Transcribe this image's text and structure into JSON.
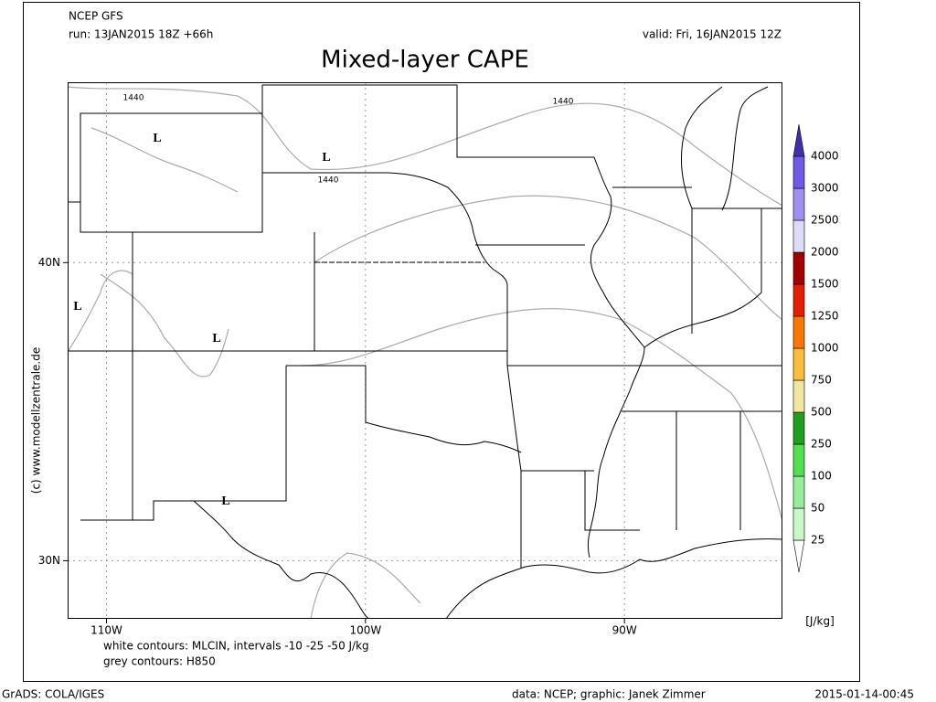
{
  "header": {
    "model": "NCEP GFS",
    "run": "run: 13JAN2015 18Z +66h",
    "valid": "valid: Fri, 16JAN2015 12Z",
    "title": "Mixed-layer CAPE"
  },
  "map": {
    "lonlim": [
      -111.5,
      -83.9
    ],
    "latlim": [
      28.05,
      46.05
    ],
    "lon_ticks": [
      {
        "value": -110,
        "label": "110W"
      },
      {
        "value": -100,
        "label": "100W"
      },
      {
        "value": -90,
        "label": "90W"
      }
    ],
    "lat_ticks": [
      {
        "value": 40,
        "label": "40N"
      },
      {
        "value": 30,
        "label": "30N"
      }
    ],
    "grid": true,
    "lows": [
      "L",
      "L",
      "L",
      "L",
      "L"
    ],
    "contour_labels": [
      1440,
      1440,
      1440
    ]
  },
  "colorbar": {
    "levels": [
      25,
      50,
      100,
      250,
      500,
      750,
      1000,
      1250,
      1500,
      2000,
      2500,
      3000,
      4000
    ],
    "colors": [
      "#ffffff",
      "#c8f8c8",
      "#98ee98",
      "#50e050",
      "#1ea01e",
      "#f0e6a0",
      "#fabe3c",
      "#fa7800",
      "#e61e00",
      "#a00000",
      "#dcdcf8",
      "#a08ef0",
      "#6e5ae6",
      "#4030b0"
    ],
    "unit": "[J/kg]"
  },
  "credit": "(c) www.modellzentrale.de",
  "notes": [
    "white contours: MLCIN, intervals -10 -25 -50 J/kg",
    "grey contours: H850"
  ],
  "footer": {
    "software": "GrADS: COLA/IGES",
    "source": "data: NCEP; graphic: Janek Zimmer",
    "timestamp": "2015-01-14-00:45"
  }
}
